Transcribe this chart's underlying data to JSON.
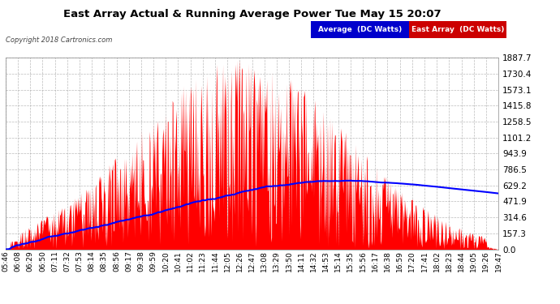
{
  "title": "East Array Actual & Running Average Power Tue May 15 20:07",
  "copyright": "Copyright 2018 Cartronics.com",
  "legend_labels": [
    "Average  (DC Watts)",
    "East Array  (DC Watts)"
  ],
  "legend_bg_colors": [
    "#0000cc",
    "#cc0000"
  ],
  "yticks": [
    0.0,
    157.3,
    314.6,
    471.9,
    629.2,
    786.5,
    943.9,
    1101.2,
    1258.5,
    1415.8,
    1573.1,
    1730.4,
    1887.7
  ],
  "ymax": 1887.7,
  "ymin": 0.0,
  "bg_color": "#ffffff",
  "grid_color": "#aaaaaa",
  "title_color": "#000000",
  "tick_color": "#000000",
  "east_array_color": "#ff0000",
  "average_color": "#0000ff",
  "x_labels": [
    "05:46",
    "06:08",
    "06:29",
    "06:50",
    "07:11",
    "07:32",
    "07:53",
    "08:14",
    "08:35",
    "08:56",
    "09:17",
    "09:38",
    "09:59",
    "10:20",
    "10:41",
    "11:02",
    "11:23",
    "11:44",
    "12:05",
    "12:26",
    "12:47",
    "13:08",
    "13:29",
    "13:50",
    "14:11",
    "14:32",
    "14:53",
    "15:14",
    "15:35",
    "15:56",
    "16:17",
    "16:38",
    "16:59",
    "17:20",
    "17:41",
    "18:02",
    "18:23",
    "18:44",
    "19:05",
    "19:26",
    "19:47"
  ],
  "n_points": 820,
  "figsize": [
    6.9,
    3.75
  ],
  "dpi": 100
}
